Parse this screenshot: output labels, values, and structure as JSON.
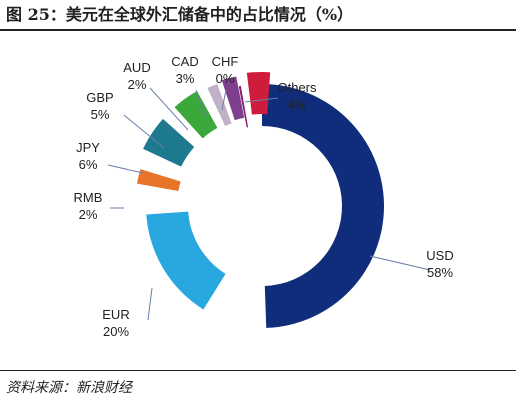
{
  "figure": {
    "title": "图 25：美元在全球外汇储备中的占比情况（%）",
    "source": "资料来源：新浪财经"
  },
  "chart_data": {
    "type": "pie",
    "title": "",
    "slices": [
      {
        "name": "USD",
        "value_label": "58%",
        "value": 58,
        "color": "#0f2d7a"
      },
      {
        "name": "EUR",
        "value_label": "20%",
        "value": 20,
        "color": "#29a8e0"
      },
      {
        "name": "RMB",
        "value_label": "2%",
        "value": 2,
        "color": "#e8742a"
      },
      {
        "name": "JPY",
        "value_label": "6%",
        "value": 6,
        "color": "#1d7a8c"
      },
      {
        "name": "GBP",
        "value_label": "5%",
        "value": 5,
        "color": "#3aa83a"
      },
      {
        "name": "AUD",
        "value_label": "2%",
        "value": 2,
        "color": "#c0b0c8"
      },
      {
        "name": "CAD",
        "value_label": "3%",
        "value": 3,
        "color": "#7e3f8f"
      },
      {
        "name": "CHF",
        "value_label": "0%",
        "value": 0,
        "color": "#8a1e6e"
      },
      {
        "name": "Others",
        "value_label": "4%",
        "value": 4,
        "color": "#d01c3c"
      }
    ]
  }
}
